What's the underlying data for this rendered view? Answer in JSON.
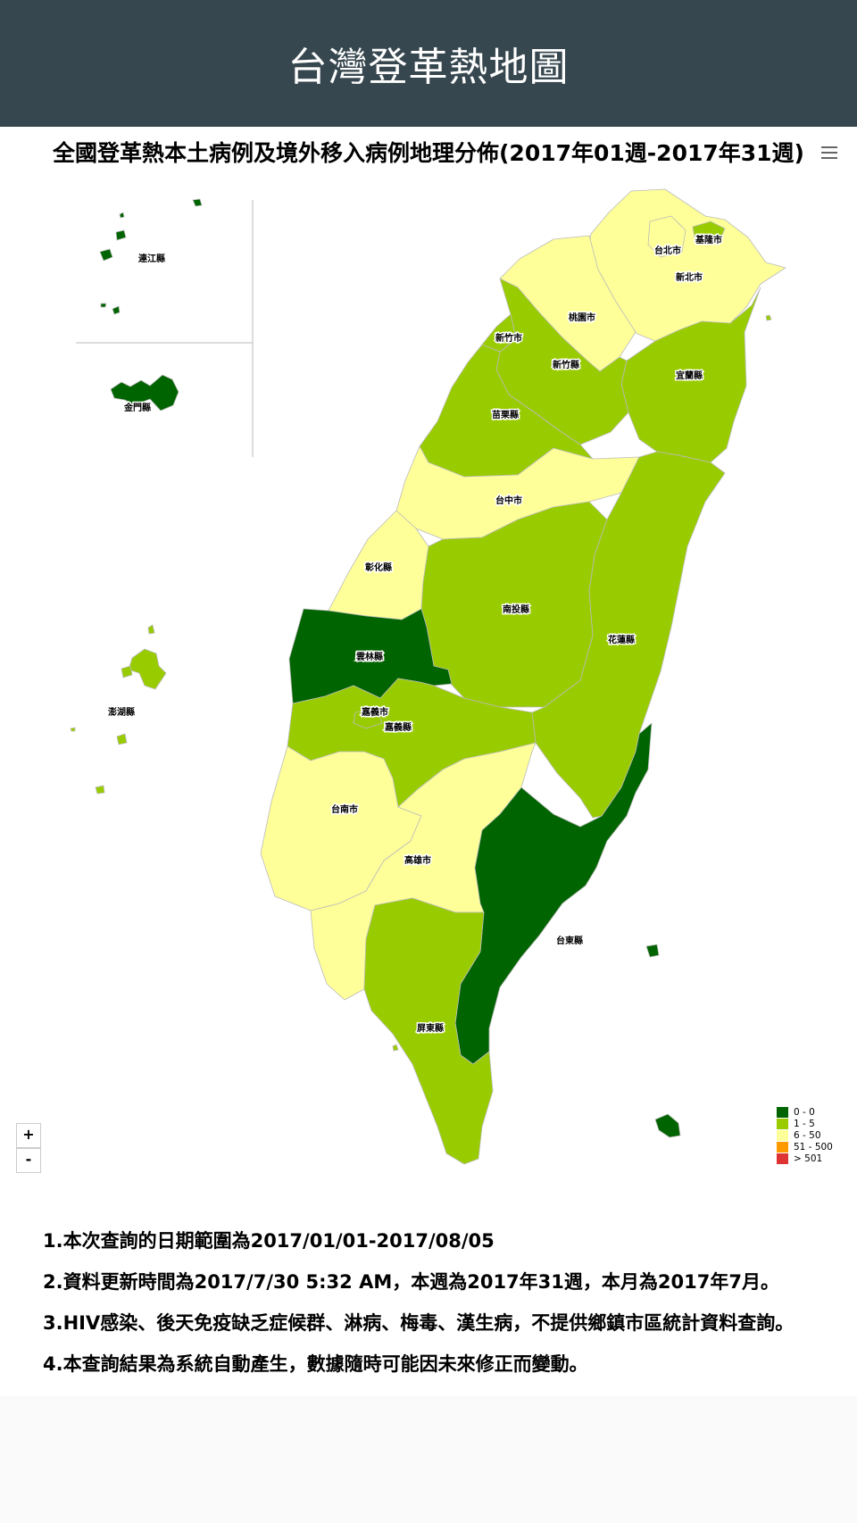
{
  "header": {
    "title": "台灣登革熱地圖"
  },
  "chart": {
    "title": "全國登革熱本土病例及境外移入病例地理分佈(2017年01週-2017年31週)"
  },
  "menu": {
    "icon": "hamburger-menu-icon"
  },
  "zoom": {
    "in_label": "+",
    "out_label": "-"
  },
  "regions": {
    "keelung": {
      "name": "基隆市",
      "range": "1 - 5"
    },
    "taipei": {
      "name": "台北市",
      "range": "6 - 50"
    },
    "newtaipei": {
      "name": "新北市",
      "range": "6 - 50"
    },
    "taoyuan": {
      "name": "桃園市",
      "range": "6 - 50"
    },
    "hsinchucity": {
      "name": "新竹市",
      "range": "1 - 5"
    },
    "hsinchucounty": {
      "name": "新竹縣",
      "range": "1 - 5"
    },
    "yilan": {
      "name": "宜蘭縣",
      "range": "1 - 5"
    },
    "miaoli": {
      "name": "苗栗縣",
      "range": "1 - 5"
    },
    "taichung": {
      "name": "台中市",
      "range": "6 - 50"
    },
    "changhua": {
      "name": "彰化縣",
      "range": "6 - 50"
    },
    "nantou": {
      "name": "南投縣",
      "range": "1 - 5"
    },
    "hualien": {
      "name": "花蓮縣",
      "range": "1 - 5"
    },
    "yunlin": {
      "name": "雲林縣",
      "range": "0 - 0"
    },
    "chiayicity": {
      "name": "嘉義市",
      "range": "1 - 5"
    },
    "chiayicounty": {
      "name": "嘉義縣",
      "range": "1 - 5"
    },
    "tainan": {
      "name": "台南市",
      "range": "6 - 50"
    },
    "kaohsiung": {
      "name": "高雄市",
      "range": "6 - 50"
    },
    "taitung": {
      "name": "台東縣",
      "range": "0 - 0"
    },
    "pingtung": {
      "name": "屏東縣",
      "range": "1 - 5"
    },
    "penghu": {
      "name": "澎湖縣",
      "range": "1 - 5"
    },
    "kinmen": {
      "name": "金門縣",
      "range": "0 - 0"
    },
    "lienchiang": {
      "name": "連江縣",
      "range": "0 - 0"
    }
  },
  "legend": [
    {
      "label": "0 - 0",
      "color": "#006400"
    },
    {
      "label": "1 - 5",
      "color": "#99cc00"
    },
    {
      "label": "6 - 50",
      "color": "#ffff99"
    },
    {
      "label": "51 - 500",
      "color": "#ff9900"
    },
    {
      "label": "> 501",
      "color": "#dd3333"
    }
  ],
  "notes": [
    "1.本次查詢的日期範圍為2017/01/01-2017/08/05",
    "2.資料更新時間為2017/7/30 5:32 AM，本週為2017年31週，本月為2017年7月。",
    "3.HIV感染、後天免疫缺乏症候群、淋病、梅毒、漢生病，不提供鄉鎮市區統計資料查詢。",
    "4.本查詢結果為系統自動產生，數據隨時可能因未來修正而變動。"
  ]
}
